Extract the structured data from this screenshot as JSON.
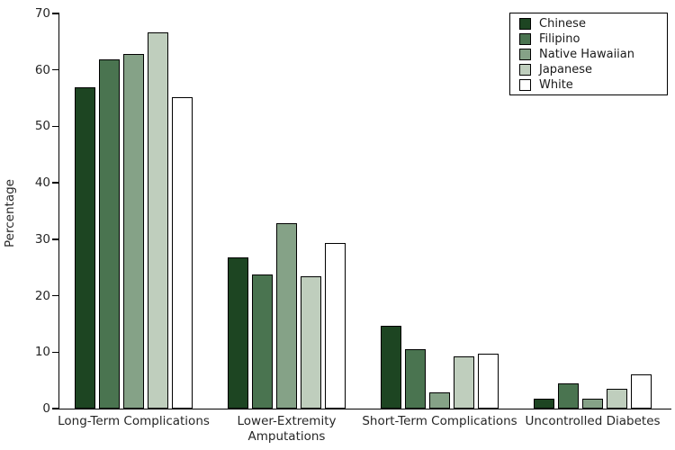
{
  "chart_data": {
    "type": "bar",
    "title": "",
    "xlabel": "",
    "ylabel": "Percentage",
    "ylim": [
      0,
      70
    ],
    "yticks": [
      0,
      10,
      20,
      30,
      40,
      50,
      60,
      70
    ],
    "grid": false,
    "legend_position": "top-right",
    "bar_edge_color": "#000000",
    "categories": [
      "Long-Term Complications",
      "Lower-Extremity\nAmputations",
      "Short-Term Complications",
      "Uncontrolled Diabetes"
    ],
    "series": [
      {
        "name": "Chinese",
        "color": "#1d4522",
        "values": [
          57.0,
          26.8,
          14.6,
          1.7
        ]
      },
      {
        "name": "Filipino",
        "color": "#4a7450",
        "values": [
          61.8,
          23.7,
          10.5,
          4.4
        ]
      },
      {
        "name": "Native Hawaiian",
        "color": "#85a287",
        "values": [
          62.8,
          32.8,
          2.9,
          1.7
        ]
      },
      {
        "name": "Japanese",
        "color": "#bfcebd",
        "values": [
          66.7,
          23.5,
          9.3,
          3.5
        ]
      },
      {
        "name": "White",
        "color": "#ffffff",
        "values": [
          55.2,
          29.4,
          9.8,
          6.0
        ]
      }
    ]
  }
}
